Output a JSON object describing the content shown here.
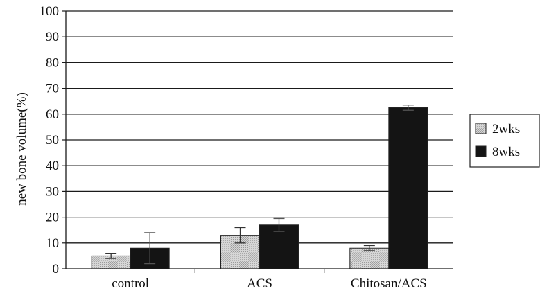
{
  "chart_data": {
    "type": "bar",
    "title": "",
    "xlabel": "",
    "ylabel": "new bone volume(%)",
    "ylim": [
      0,
      100
    ],
    "yticks": [
      0,
      10,
      20,
      30,
      40,
      50,
      60,
      70,
      80,
      90,
      100
    ],
    "grid": true,
    "legend_position": "right",
    "categories": [
      "control",
      "ACS",
      "Chitosan/ACS"
    ],
    "series": [
      {
        "name": "2wks",
        "color": "#cfcfcf",
        "values": [
          5,
          13,
          8
        ],
        "errors": [
          1,
          3,
          1
        ]
      },
      {
        "name": "8wks",
        "color": "#141414",
        "values": [
          8,
          17,
          62.5
        ],
        "errors": [
          6,
          2.5,
          1
        ]
      }
    ]
  }
}
